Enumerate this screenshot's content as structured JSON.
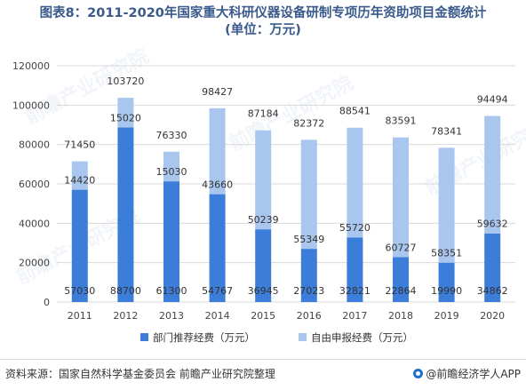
{
  "title": {
    "line1": "图表8：2011-2020年国家重大科研仪器设备研制专项历年资助项目金额统计",
    "line2": "(单位：万元)"
  },
  "footer": {
    "source": "资料来源：国家自然科学基金委员会 前瞻产业研究院整理",
    "brand": "@前瞻经济学人APP"
  },
  "watermarks": [
    "前瞻产业研究院",
    "前瞻产业研究院",
    "前瞻产业研究院",
    "前瞻产业研究院"
  ],
  "colors": {
    "series1": "#3b7dd8",
    "series2": "#a9c6ee",
    "axis_text": "#444444",
    "grid": "#d9d9d9",
    "label_text": "#333333"
  },
  "chart_data": {
    "type": "bar",
    "stacked": true,
    "categories": [
      "2011",
      "2012",
      "2013",
      "2014",
      "2015",
      "2016",
      "2017",
      "2018",
      "2019",
      "2020"
    ],
    "series": [
      {
        "name": "部门推荐经费（万元）",
        "values": [
          57030,
          88700,
          61300,
          54767,
          36945,
          27023,
          32821,
          22864,
          19990,
          34862
        ]
      },
      {
        "name": "自由申报经费（万元）",
        "values": [
          14420,
          15020,
          15030,
          43660,
          50239,
          55349,
          55720,
          60727,
          58351,
          59632
        ]
      }
    ],
    "totals": [
      71450,
      103720,
      76330,
      98427,
      87184,
      82372,
      88541,
      83591,
      78341,
      94494
    ],
    "ylim": [
      0,
      120000
    ],
    "yticks": [
      0,
      20000,
      40000,
      60000,
      80000,
      100000,
      120000
    ],
    "grid": true,
    "legend_position": "bottom"
  }
}
